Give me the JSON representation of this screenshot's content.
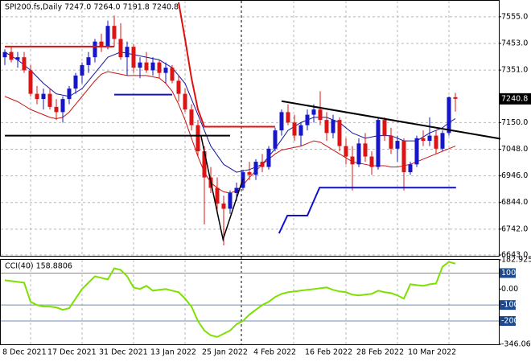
{
  "chart_data": [
    {
      "type": "candlestick",
      "title": "SPI200.fs,Daily  7247.0 7264.0 7191.8 7240.8",
      "categories": [
        "8 Dec 2021",
        null,
        null,
        null,
        null,
        null,
        null,
        "17 Dec 2021",
        null,
        null,
        null,
        null,
        null,
        null,
        null,
        "31 Dec 2021",
        null,
        null,
        null,
        null,
        null,
        null,
        null,
        "13 Jan 2022",
        null,
        null,
        null,
        null,
        null,
        null,
        null,
        "25 Jan 2022",
        null,
        null,
        null,
        null,
        null,
        null,
        null,
        "4 Feb 2022",
        null,
        null,
        null,
        null,
        null,
        null,
        null,
        "16 Feb 2022",
        null,
        null,
        null,
        null,
        null,
        null,
        null,
        "28 Feb 2022",
        null,
        null,
        null,
        null,
        null,
        null,
        null,
        "10 Mar 2022",
        null,
        null,
        null,
        null,
        null,
        null,
        null
      ],
      "open": [
        7400,
        7420,
        7390,
        7400,
        7350,
        7260,
        7240,
        7260,
        7210,
        7190,
        7240,
        7280,
        7330,
        7370,
        7400,
        7460,
        7440,
        7520,
        7470,
        7400,
        7440,
        7360,
        7380,
        7350,
        7380,
        7340,
        7360,
        7310,
        7260,
        7200,
        7140,
        7040,
        6940,
        6900,
        6840,
        6820,
        6880,
        6900,
        6960,
        6950,
        7000,
        6980,
        7050,
        7120,
        7190,
        7150,
        7100,
        7140,
        7180,
        7200,
        7160,
        7110,
        7160,
        7060,
        7020,
        6990,
        7070,
        7020,
        6980,
        7160,
        7100,
        7050,
        7080,
        6960,
        6990,
        7090,
        7080,
        7100,
        7050,
        7110,
        7247.0
      ],
      "high": [
        7430,
        7440,
        7420,
        7420,
        7370,
        7290,
        7280,
        7280,
        7240,
        7250,
        7290,
        7340,
        7380,
        7420,
        7470,
        7490,
        7540,
        7560,
        7530,
        7460,
        7450,
        7400,
        7420,
        7400,
        7390,
        7380,
        7370,
        7330,
        7280,
        7220,
        7160,
        7060,
        6980,
        6940,
        6870,
        6890,
        6920,
        6970,
        7000,
        7010,
        7030,
        7060,
        7130,
        7200,
        7220,
        7180,
        7150,
        7200,
        7220,
        7270,
        7190,
        7180,
        7170,
        7090,
        7060,
        7090,
        7110,
        7040,
        7170,
        7170,
        7130,
        7100,
        7090,
        7000,
        7100,
        7120,
        7170,
        7120,
        7120,
        7250,
        7264.0
      ],
      "low": [
        7370,
        7380,
        7360,
        7340,
        7250,
        7220,
        7200,
        7200,
        7160,
        7150,
        7220,
        7260,
        7300,
        7340,
        7380,
        7420,
        7430,
        7440,
        7390,
        7330,
        7340,
        7320,
        7340,
        7330,
        7320,
        7300,
        7300,
        7230,
        7190,
        7120,
        7020,
        6760,
        6880,
        6800,
        6680,
        6800,
        6850,
        6890,
        6930,
        6930,
        6960,
        6970,
        7040,
        7100,
        7140,
        7080,
        7060,
        7120,
        7150,
        7140,
        7080,
        7090,
        7040,
        6990,
        6890,
        6980,
        7000,
        6950,
        6970,
        7080,
        7030,
        7000,
        6890,
        6950,
        6980,
        7060,
        7060,
        7030,
        7040,
        7100,
        7191.8
      ],
      "close": [
        7420,
        7390,
        7400,
        7350,
        7260,
        7240,
        7260,
        7210,
        7190,
        7240,
        7280,
        7330,
        7370,
        7400,
        7460,
        7440,
        7520,
        7470,
        7400,
        7440,
        7360,
        7380,
        7350,
        7380,
        7340,
        7360,
        7310,
        7260,
        7200,
        7140,
        7040,
        6940,
        6900,
        6840,
        6820,
        6880,
        6900,
        6960,
        6950,
        7000,
        6980,
        7050,
        7120,
        7190,
        7150,
        7100,
        7140,
        7180,
        7200,
        7160,
        7110,
        7160,
        7060,
        7020,
        6990,
        7070,
        7020,
        6980,
        7160,
        7100,
        7050,
        7080,
        6960,
        6990,
        7090,
        7080,
        7100,
        7050,
        7110,
        7247,
        7240.8
      ],
      "up_color": "#1616c8",
      "down_color": "#dc1414",
      "lines": [
        {
          "color": "#1414a0",
          "values": [
            7420,
            7405,
            7390,
            7370,
            7350,
            7325,
            7300,
            7280,
            7260,
            7255,
            7250,
            7265,
            7280,
            7310,
            7340,
            7370,
            7400,
            7410,
            7420,
            7415,
            7410,
            7405,
            7400,
            7395,
            7390,
            7375,
            7360,
            7330,
            7300,
            7240,
            7180,
            7120,
            7060,
            7025,
            6990,
            6975,
            6960,
            6965,
            6970,
            6980,
            6990,
            7020,
            7050,
            7085,
            7120,
            7135,
            7150,
            7160,
            7170,
            7170,
            7170,
            7160,
            7150,
            7130,
            7110,
            7100,
            7090,
            7095,
            7100,
            7100,
            7100,
            7090,
            7080,
            7080,
            7080,
            7095,
            7110,
            7120,
            7130,
            7150,
            7165
          ]
        },
        {
          "color": "#c81414",
          "values": [
            7250,
            7240,
            7230,
            7215,
            7200,
            7190,
            7180,
            7170,
            7165,
            7170,
            7190,
            7220,
            7250,
            7280,
            7310,
            7335,
            7345,
            7340,
            7335,
            7330,
            7330,
            7330,
            7330,
            7325,
            7320,
            7300,
            7270,
            7220,
            7160,
            7090,
            7020,
            6960,
            6920,
            6900,
            6885,
            6880,
            6890,
            6910,
            6940,
            6965,
            6990,
            7010,
            7030,
            7045,
            7050,
            7055,
            7060,
            7070,
            7080,
            7075,
            7060,
            7045,
            7030,
            7015,
            7000,
            6995,
            6990,
            6985,
            6985,
            6985,
            6980,
            6980,
            6985,
            6990,
            7000,
            7010,
            7020,
            7030,
            7040,
            7050,
            7060
          ]
        }
      ],
      "objects": [
        {
          "color": "#e01010",
          "width": 2,
          "x": [
            0,
            17
          ],
          "values": [
            7441,
            7441
          ]
        },
        {
          "color": "#e01010",
          "width": 2,
          "x": [
            27,
            28,
            29,
            30,
            31,
            42
          ],
          "values": [
            7610,
            7470,
            7320,
            7200,
            7134,
            7134
          ]
        },
        {
          "color": "#1010d0",
          "width": 2,
          "x": [
            17,
            26
          ],
          "values": [
            7257,
            7257
          ]
        },
        {
          "color": "#1010d0",
          "width": 2,
          "x": [
            42.6,
            43.9,
            47,
            48.9,
            70.1
          ],
          "values": [
            6726,
            6794,
            6794,
            6901,
            6901
          ]
        },
        {
          "color": "#000000",
          "width": 2,
          "x": [
            0,
            35
          ],
          "values": [
            7100,
            7100
          ]
        },
        {
          "color": "#000000",
          "width": 2,
          "x": [
            43,
            77
          ],
          "values": [
            7232,
            7088
          ]
        },
        {
          "color": "#000000",
          "width": 1.5,
          "x": [
            30.5,
            33.9,
            37
          ],
          "values": [
            7097,
            6703,
            6935
          ]
        }
      ],
      "ylim": [
        6640,
        7616
      ],
      "yticks": [
        {
          "value": 7555,
          "label": "7555.0"
        },
        {
          "value": 7453,
          "label": "7453.0"
        },
        {
          "value": 7351,
          "label": "7351.0"
        },
        {
          "value": 7150,
          "label": "7150.0"
        },
        {
          "value": 7048,
          "label": "7048.0"
        },
        {
          "value": 6946,
          "label": "6946.0"
        },
        {
          "value": 6844,
          "label": "6844.0"
        },
        {
          "value": 6742,
          "label": "6742.0"
        },
        {
          "value": 6643,
          "label": "6643.0"
        }
      ],
      "price_label": {
        "value": 7240.8,
        "label": "7240.8"
      },
      "grid": true
    },
    {
      "type": "line",
      "title": "CCI(40) 158.8806",
      "color": "#7ee000",
      "values": [
        55,
        50,
        45,
        40,
        -80,
        -100,
        -110,
        -110,
        -115,
        -130,
        -120,
        -60,
        0,
        40,
        80,
        70,
        60,
        130,
        120,
        80,
        10,
        0,
        20,
        -10,
        -5,
        0,
        -10,
        -20,
        -60,
        -110,
        -200,
        -260,
        -290,
        -300,
        -280,
        -260,
        -220,
        -200,
        -160,
        -130,
        -100,
        -80,
        -50,
        -30,
        -20,
        -15,
        -10,
        -5,
        0,
        5,
        10,
        -5,
        -15,
        -20,
        -35,
        -40,
        -35,
        -30,
        -10,
        -20,
        -25,
        -40,
        -60,
        30,
        25,
        20,
        30,
        35,
        140,
        170,
        158.8806
      ],
      "ylim": [
        -346.068,
        182.9258
      ],
      "yticks": [
        182.9258,
        100,
        {
          "value": 0,
          "label": "0.00"
        },
        -100,
        -200,
        -346.068
      ],
      "levels": [
        100,
        -100,
        -200
      ],
      "level_color": "#6f8fb0"
    }
  ]
}
